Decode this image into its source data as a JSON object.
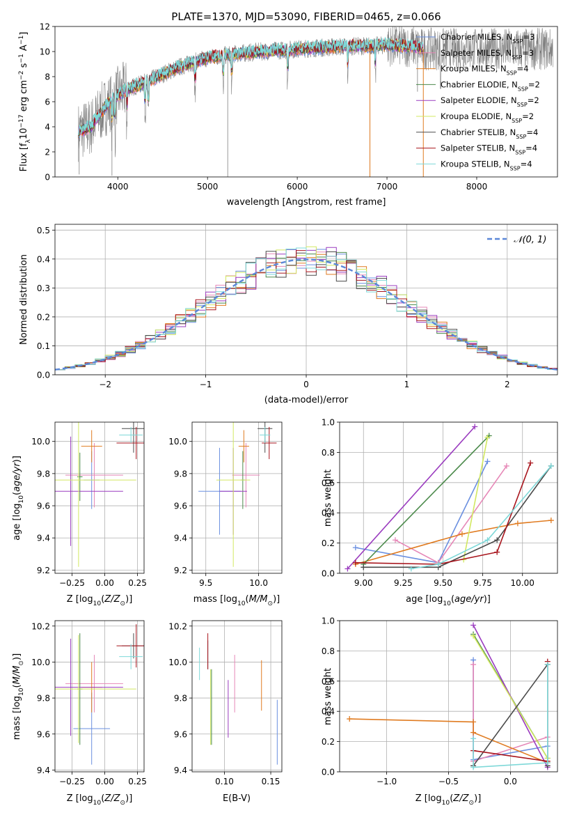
{
  "colors": {
    "Chabrier MILES": "#6a8fe0",
    "Salpeter MILES": "#e687b7",
    "Kroupa MILES": "#e07b20",
    "Chabrier ELODIE": "#4b8a4b",
    "Salpeter ELODIE": "#9a3bbf",
    "Kroupa ELODIE": "#d2e860",
    "Chabrier STELIB": "#4a4a4a",
    "Salpeter STELIB": "#a8141c",
    "Kroupa STELIB": "#7dd8d8",
    "gauss": "#5b87d8"
  },
  "models": [
    "Chabrier MILES",
    "Salpeter MILES",
    "Kroupa MILES",
    "Chabrier ELODIE",
    "Salpeter ELODIE",
    "Kroupa ELODIE",
    "Chabrier STELIB",
    "Salpeter STELIB",
    "Kroupa STELIB"
  ],
  "chart_data": [
    {
      "id": "spectrum",
      "type": "line",
      "title": "PLATE=1370, MJD=53090, FIBERID=0465, z=0.066",
      "xlabel": "wavelength [Angstrom, rest frame]",
      "ylabel": "Flux [f_λ10^-17 erg cm^-2 s^-1 A^-1]",
      "xlim": [
        3300,
        8900
      ],
      "ylim": [
        0,
        12
      ],
      "xticks": [
        4000,
        5000,
        6000,
        7000,
        8000
      ],
      "yticks": [
        0,
        2,
        4,
        6,
        8,
        10,
        12
      ],
      "x": [
        3560,
        3700,
        3850,
        3950,
        4000,
        4100,
        4300,
        4500,
        4700,
        5000,
        5300,
        5600,
        6000,
        6500,
        7000,
        7300,
        7400
      ],
      "y": [
        3.6,
        4.0,
        5.5,
        6.2,
        6.5,
        7.0,
        7.5,
        8.2,
        8.8,
        9.5,
        9.8,
        10.0,
        10.2,
        10.4,
        10.5,
        10.4,
        10.2
      ],
      "legend": [
        {
          "name": "Chabrier MILES",
          "nssp": "3"
        },
        {
          "name": "Salpeter MILES",
          "nssp": "3"
        },
        {
          "name": "Kroupa MILES",
          "nssp": "4"
        },
        {
          "name": "Chabrier ELODIE",
          "nssp": "2"
        },
        {
          "name": "Salpeter ELODIE",
          "nssp": "2"
        },
        {
          "name": "Kroupa ELODIE",
          "nssp": "2"
        },
        {
          "name": "Chabrier STELIB",
          "nssp": "4"
        },
        {
          "name": "Salpeter STELIB",
          "nssp": "4"
        },
        {
          "name": "Kroupa STELIB",
          "nssp": "4"
        }
      ],
      "legend_position": "right",
      "grid": false
    },
    {
      "id": "residuals",
      "type": "line",
      "xlabel": "(data-model)/error",
      "ylabel": "Normed distribution",
      "xlim": [
        -2.5,
        2.5
      ],
      "ylim": [
        0,
        0.52
      ],
      "xticks": [
        -2,
        -1,
        0,
        1,
        2
      ],
      "yticks": [
        0.0,
        0.1,
        0.2,
        0.3,
        0.4,
        0.5
      ],
      "grid": true,
      "legend": "𝒩(0, 1)",
      "legend_position": "top-right",
      "series": "step histograms for each of the nine models, plus the dashed standard normal curve"
    },
    {
      "id": "age-vs-Z",
      "type": "scatter",
      "xlabel": "Z [log10(Z/Z☉)]",
      "ylabel": "age [log10(age/yr)]",
      "xlim": [
        -0.38,
        0.3
      ],
      "ylim": [
        9.18,
        10.12
      ],
      "xticks": [
        -0.25,
        0.0,
        0.25
      ],
      "xticklabels": [
        "−0.25",
        "0.00",
        "0.25"
      ],
      "yticks": [
        9.2,
        9.4,
        9.6,
        9.8,
        10.0
      ],
      "grid": true,
      "points": [
        {
          "model": "Chabrier MILES",
          "x": -0.1,
          "xerr": 0.06,
          "y": 9.76,
          "yerr": 0.18
        },
        {
          "model": "Salpeter MILES",
          "x": -0.08,
          "xerr": 0.22,
          "y": 9.79,
          "yerr": 0.2
        },
        {
          "model": "Kroupa MILES",
          "x": -0.1,
          "xerr": 0.08,
          "y": 9.97,
          "yerr": 0.1
        },
        {
          "model": "Chabrier ELODIE",
          "x": -0.19,
          "xerr": 0.02,
          "y": 9.78,
          "yerr": 0.15
        },
        {
          "model": "Salpeter ELODIE",
          "x": -0.26,
          "xerr": 0.4,
          "y": 9.69,
          "yerr": 0.34
        },
        {
          "model": "Kroupa ELODIE",
          "x": -0.2,
          "xerr": 0.44,
          "y": 9.76,
          "yerr": 0.54
        },
        {
          "model": "Chabrier STELIB",
          "x": 0.22,
          "xerr": 0.09,
          "y": 10.08,
          "yerr": 0.15
        },
        {
          "model": "Salpeter STELIB",
          "x": 0.24,
          "xerr": 0.15,
          "y": 9.99,
          "yerr": 0.1
        },
        {
          "model": "Kroupa STELIB",
          "x": 0.2,
          "xerr": 0.09,
          "y": 10.04,
          "yerr": 0.05
        }
      ]
    },
    {
      "id": "age-vs-mass",
      "type": "scatter",
      "xlabel": "mass [log10(M/M☉)]",
      "ylabel": "",
      "xlim": [
        9.37,
        10.22
      ],
      "ylim": [
        9.18,
        10.12
      ],
      "xticks": [
        9.5,
        10.0
      ],
      "yticks": [
        9.2,
        9.4,
        9.6,
        9.8,
        10.0
      ],
      "grid": true,
      "points": [
        {
          "model": "Chabrier MILES",
          "x": 9.63,
          "xerr": 0.2,
          "y": 9.69,
          "yerr": 0.27
        },
        {
          "model": "Salpeter MILES",
          "x": 9.88,
          "xerr": 0.13,
          "y": 9.79,
          "yerr": 0.2
        },
        {
          "model": "Kroupa MILES",
          "x": 9.86,
          "xerr": 0.05,
          "y": 9.97,
          "yerr": 0.1
        },
        {
          "model": "Chabrier ELODIE",
          "x": 9.85,
          "xerr": 0.02,
          "y": 9.76,
          "yerr": 0.18
        },
        {
          "model": "Salpeter ELODIE",
          "x": 9.76,
          "xerr": 0.13,
          "y": 9.69,
          "yerr": 0.27
        },
        {
          "model": "Kroupa ELODIE",
          "x": 9.76,
          "xerr": 0.16,
          "y": 9.76,
          "yerr": 0.54
        },
        {
          "model": "Chabrier STELIB",
          "x": 10.06,
          "xerr": 0.07,
          "y": 10.08,
          "yerr": 0.15
        },
        {
          "model": "Salpeter STELIB",
          "x": 10.1,
          "xerr": 0.07,
          "y": 9.99,
          "yerr": 0.1
        },
        {
          "model": "Kroupa STELIB",
          "x": 10.06,
          "xerr": 0.05,
          "y": 10.04,
          "yerr": 0.05
        }
      ]
    },
    {
      "id": "massweight-vs-age",
      "type": "line",
      "xlabel": "age [log10(age/yr)]",
      "ylabel": "mass weight",
      "xlim": [
        8.85,
        10.22
      ],
      "ylim": [
        0,
        1.0
      ],
      "xticks": [
        9.0,
        9.25,
        9.5,
        9.75,
        10.0
      ],
      "xticklabels": [
        "9.00",
        "9.25",
        "9.50",
        "9.75",
        "10.00"
      ],
      "yticks": [
        0.0,
        0.2,
        0.4,
        0.6,
        0.8,
        1.0
      ],
      "grid": true,
      "series": [
        {
          "model": "Chabrier MILES",
          "x": [
            8.95,
            9.47,
            9.78
          ],
          "y": [
            0.17,
            0.07,
            0.74
          ]
        },
        {
          "model": "Salpeter MILES",
          "x": [
            9.2,
            9.47,
            9.9
          ],
          "y": [
            0.22,
            0.07,
            0.71
          ]
        },
        {
          "model": "Kroupa MILES",
          "x": [
            8.95,
            9.62,
            9.97,
            10.18
          ],
          "y": [
            0.06,
            0.26,
            0.33,
            0.35
          ]
        },
        {
          "model": "Chabrier ELODIE",
          "x": [
            9.0,
            9.79
          ],
          "y": [
            0.06,
            0.91
          ]
        },
        {
          "model": "Salpeter ELODIE",
          "x": [
            8.9,
            9.7
          ],
          "y": [
            0.03,
            0.97
          ]
        },
        {
          "model": "Kroupa ELODIE",
          "x": [
            9.63,
            9.78
          ],
          "y": [
            0.09,
            0.9
          ]
        },
        {
          "model": "Chabrier STELIB",
          "x": [
            9.0,
            9.47,
            9.84,
            10.18
          ],
          "y": [
            0.04,
            0.04,
            0.22,
            0.71
          ]
        },
        {
          "model": "Salpeter STELIB",
          "x": [
            8.95,
            9.47,
            9.84,
            10.05
          ],
          "y": [
            0.07,
            0.06,
            0.14,
            0.73
          ]
        },
        {
          "model": "Kroupa STELIB",
          "x": [
            9.3,
            9.47,
            9.78,
            10.18
          ],
          "y": [
            0.03,
            0.06,
            0.22,
            0.71
          ]
        }
      ]
    },
    {
      "id": "mass-vs-Z",
      "type": "scatter",
      "xlabel": "Z [log10(Z/Z☉)]",
      "ylabel": "mass [log10(M/M☉)]",
      "xlim": [
        -0.38,
        0.3
      ],
      "ylim": [
        9.39,
        10.23
      ],
      "xticks": [
        -0.25,
        0.0,
        0.25
      ],
      "xticklabels": [
        "−0.25",
        "0.00",
        "0.25"
      ],
      "yticks": [
        9.4,
        9.6,
        9.8,
        10.0,
        10.2
      ],
      "grid": true,
      "points": [
        {
          "model": "Chabrier MILES",
          "x": -0.1,
          "xerr": 0.14,
          "y": 9.63,
          "yerr": 0.2
        },
        {
          "model": "Salpeter MILES",
          "x": -0.08,
          "xerr": 0.22,
          "y": 9.88,
          "yerr": 0.16
        },
        {
          "model": "Kroupa MILES",
          "x": -0.1,
          "xerr": 0.08,
          "y": 9.86,
          "yerr": 0.14
        },
        {
          "model": "Chabrier ELODIE",
          "x": -0.19,
          "xerr": 0.02,
          "y": 9.85,
          "yerr": 0.31
        },
        {
          "model": "Salpeter ELODIE",
          "x": -0.26,
          "xerr": 0.4,
          "y": 9.86,
          "yerr": 0.27
        },
        {
          "model": "Kroupa ELODIE",
          "x": -0.2,
          "xerr": 0.44,
          "y": 9.85,
          "yerr": 0.3
        },
        {
          "model": "Chabrier STELIB",
          "x": 0.22,
          "xerr": 0.09,
          "y": 10.09,
          "yerr": 0.07
        },
        {
          "model": "Salpeter STELIB",
          "x": 0.24,
          "xerr": 0.15,
          "y": 10.09,
          "yerr": 0.12
        },
        {
          "model": "Kroupa STELIB",
          "x": 0.2,
          "xerr": 0.09,
          "y": 10.03,
          "yerr": 0.07
        }
      ]
    },
    {
      "id": "mass-vs-ebv",
      "type": "scatter",
      "xlabel": "E(B-V)",
      "ylabel": "",
      "xlim": [
        0.065,
        0.162
      ],
      "ylim": [
        9.39,
        10.23
      ],
      "xticks": [
        0.1,
        0.15
      ],
      "xticklabels": [
        "0.10",
        "0.15"
      ],
      "yticks": [
        9.4,
        9.6,
        9.8,
        10.0,
        10.2
      ],
      "grid": true,
      "points": [
        {
          "model": "Chabrier MILES",
          "x": 0.157,
          "y": 9.61,
          "yerr": 0.18
        },
        {
          "model": "Salpeter MILES",
          "x": 0.111,
          "y": 9.88,
          "yerr": 0.16
        },
        {
          "model": "Kroupa MILES",
          "x": 0.14,
          "y": 9.87,
          "yerr": 0.14
        },
        {
          "model": "Chabrier ELODIE",
          "x": 0.086,
          "y": 9.75,
          "yerr": 0.21
        },
        {
          "model": "Salpeter ELODIE",
          "x": 0.104,
          "y": 9.74,
          "yerr": 0.16
        },
        {
          "model": "Kroupa ELODIE",
          "x": 0.085,
          "y": 9.75,
          "yerr": 0.21
        },
        {
          "model": "Chabrier STELIB",
          "x": 0.082,
          "y": 10.04,
          "yerr": 0.08
        },
        {
          "model": "Salpeter STELIB",
          "x": 0.082,
          "y": 10.06,
          "yerr": 0.1
        },
        {
          "model": "Kroupa STELIB",
          "x": 0.073,
          "y": 9.99,
          "yerr": 0.09
        }
      ]
    },
    {
      "id": "massweight-vs-Z",
      "type": "line",
      "xlabel": "Z [log10(Z/Z☉)]",
      "ylabel": "mass weight",
      "xlim": [
        -1.38,
        0.38
      ],
      "ylim": [
        0,
        1.0
      ],
      "xticks": [
        -1.0,
        -0.5,
        0.0
      ],
      "xticklabels": [
        "−1.0",
        "−0.5",
        "0.0"
      ],
      "yticks": [
        0.0,
        0.2,
        0.4,
        0.6,
        0.8,
        1.0
      ],
      "grid": true,
      "series": [
        {
          "model": "Chabrier MILES",
          "x": [
            -0.3,
            -0.3,
            0.3
          ],
          "y": [
            0.74,
            0.08,
            0.17
          ]
        },
        {
          "model": "Salpeter MILES",
          "x": [
            -0.3,
            -0.3,
            0.3
          ],
          "y": [
            0.71,
            0.07,
            0.23
          ]
        },
        {
          "model": "Kroupa MILES",
          "x": [
            -1.3,
            -0.3,
            -0.3,
            0.3
          ],
          "y": [
            0.35,
            0.33,
            0.26,
            0.06
          ]
        },
        {
          "model": "Chabrier ELODIE",
          "x": [
            -0.3,
            0.3
          ],
          "y": [
            0.91,
            0.09
          ]
        },
        {
          "model": "Salpeter ELODIE",
          "x": [
            -0.3,
            0.3
          ],
          "y": [
            0.97,
            0.03
          ]
        },
        {
          "model": "Kroupa ELODIE",
          "x": [
            -0.3,
            0.3
          ],
          "y": [
            0.9,
            0.09
          ]
        },
        {
          "model": "Chabrier STELIB",
          "x": [
            -0.3,
            0.3,
            0.3
          ],
          "y": [
            0.04,
            0.71,
            0.04
          ]
        },
        {
          "model": "Salpeter STELIB",
          "x": [
            -0.3,
            0.3,
            0.3
          ],
          "y": [
            0.14,
            0.07,
            0.73
          ]
        },
        {
          "model": "Kroupa STELIB",
          "x": [
            -0.3,
            -0.3,
            0.3,
            0.3
          ],
          "y": [
            0.22,
            0.03,
            0.06,
            0.71
          ]
        }
      ]
    }
  ]
}
